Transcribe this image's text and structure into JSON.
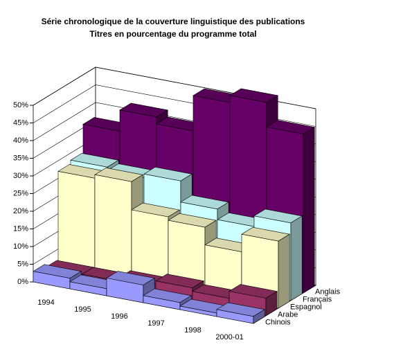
{
  "chart_data": {
    "type": "bar3d",
    "title": "Série chronologique de la couverture linguistique des publications",
    "subtitle": "Titres en pourcentage du programme total",
    "categories": [
      "1994",
      "1995",
      "1996",
      "1997",
      "1998",
      "2000-01"
    ],
    "series": [
      {
        "name": "Chinois",
        "color": "#9999ff",
        "values": [
          3,
          2,
          5,
          2,
          1,
          2
        ]
      },
      {
        "name": "Arabe",
        "color": "#993366",
        "values": [
          2,
          2,
          3,
          4,
          3,
          5
        ]
      },
      {
        "name": "Espagnol",
        "color": "#ffffcc",
        "values": [
          27,
          28,
          20,
          19,
          14,
          19
        ]
      },
      {
        "name": "Français",
        "color": "#ccffff",
        "values": [
          28,
          27,
          28,
          22,
          19,
          22
        ]
      },
      {
        "name": "Anglais",
        "color": "#660066",
        "values": [
          36,
          42,
          40,
          50,
          52,
          45
        ]
      }
    ],
    "ylim": [
      0,
      50
    ],
    "yticks": [
      {
        "value": 0,
        "label": "0%"
      },
      {
        "value": 5,
        "label": "5%"
      },
      {
        "value": 10,
        "label": "10%"
      },
      {
        "value": 15,
        "label": "15%"
      },
      {
        "value": 20,
        "label": "20%"
      },
      {
        "value": 25,
        "label": "25%"
      },
      {
        "value": 30,
        "label": "30%"
      },
      {
        "value": 35,
        "label": "35%"
      },
      {
        "value": 40,
        "label": "40%"
      },
      {
        "value": 45,
        "label": "45%"
      },
      {
        "value": 50,
        "label": "50%"
      }
    ],
    "grid": true
  }
}
